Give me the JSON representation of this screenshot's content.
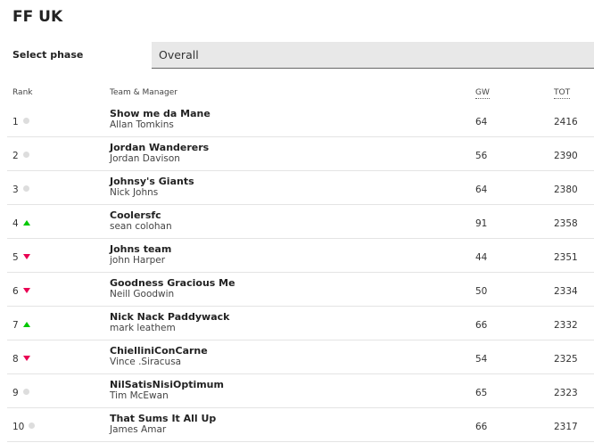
{
  "title": "FF UK",
  "phase": {
    "label": "Select phase",
    "value": "Overall"
  },
  "headers": {
    "rank": "Rank",
    "team": "Team & Manager",
    "gw": "GW",
    "tot": "TOT"
  },
  "colors": {
    "up": "#00c800",
    "down": "#e90052",
    "same": "#dddddd"
  },
  "rows": [
    {
      "rank": "1",
      "move": "same",
      "team": "Show me da Mane",
      "manager": "Allan Tomkins",
      "gw": "64",
      "tot": "2416"
    },
    {
      "rank": "2",
      "move": "same",
      "team": "Jordan Wanderers",
      "manager": "Jordan Davison",
      "gw": "56",
      "tot": "2390"
    },
    {
      "rank": "3",
      "move": "same",
      "team": "Johnsy's Giants",
      "manager": "Nick Johns",
      "gw": "64",
      "tot": "2380"
    },
    {
      "rank": "4",
      "move": "up",
      "team": "Coolersfc",
      "manager": "sean colohan",
      "gw": "91",
      "tot": "2358"
    },
    {
      "rank": "5",
      "move": "down",
      "team": "Johns team",
      "manager": "john Harper",
      "gw": "44",
      "tot": "2351"
    },
    {
      "rank": "6",
      "move": "down",
      "team": "Goodness Gracious Me",
      "manager": "Neill Goodwin",
      "gw": "50",
      "tot": "2334"
    },
    {
      "rank": "7",
      "move": "up",
      "team": "Nick Nack Paddywack",
      "manager": "mark leathem",
      "gw": "66",
      "tot": "2332"
    },
    {
      "rank": "8",
      "move": "down",
      "team": "ChielliniConCarne",
      "manager": "Vince .Siracusa",
      "gw": "54",
      "tot": "2325"
    },
    {
      "rank": "9",
      "move": "same",
      "team": "NilSatisNisiOptimum",
      "manager": "Tim McEwan",
      "gw": "65",
      "tot": "2323"
    },
    {
      "rank": "10",
      "move": "same",
      "team": "That Sums It All Up",
      "manager": "James Amar",
      "gw": "66",
      "tot": "2317"
    }
  ]
}
